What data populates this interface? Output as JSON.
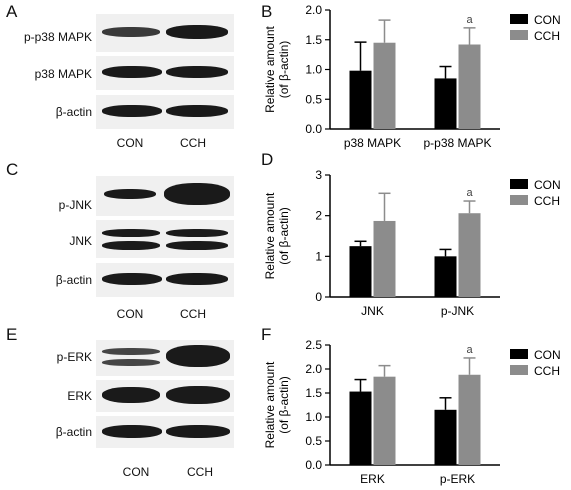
{
  "panels": {
    "A": {
      "letter": "A",
      "rows": [
        "p-p38 MAPK",
        "p38 MAPK",
        "β-actin"
      ],
      "lanes": [
        "CON",
        "CCH"
      ]
    },
    "B": {
      "letter": "B"
    },
    "C": {
      "letter": "C",
      "rows": [
        "p-JNK",
        "JNK",
        "β-actin"
      ],
      "lanes": [
        "CON",
        "CCH"
      ]
    },
    "D": {
      "letter": "D"
    },
    "E": {
      "letter": "E",
      "rows": [
        "p-ERK",
        "ERK",
        "β-actin"
      ],
      "lanes": [
        "CON",
        "CCH"
      ]
    },
    "F": {
      "letter": "F"
    }
  },
  "colors": {
    "CON": "#000000",
    "CCH": "#8c8c8c"
  },
  "chart_data": [
    {
      "panel": "B",
      "type": "bar",
      "categories": [
        "p38 MAPK",
        "p-p38 MAPK"
      ],
      "series": [
        {
          "name": "CON",
          "values": [
            0.98,
            0.85
          ],
          "errors": [
            0.48,
            0.2
          ]
        },
        {
          "name": "CCH",
          "values": [
            1.45,
            1.42
          ],
          "errors": [
            0.38,
            0.28
          ]
        }
      ],
      "ylabel": "Relative amount\n(of β-actin)",
      "ylim": [
        0,
        2.0
      ],
      "yticks": [
        "0.0",
        "0.5",
        "1.0",
        "1.5",
        "2.0"
      ],
      "annotations": [
        {
          "category": 1,
          "series": 1,
          "text": "a"
        }
      ],
      "legend": "top-right"
    },
    {
      "panel": "D",
      "type": "bar",
      "categories": [
        "JNK",
        "p-JNK"
      ],
      "series": [
        {
          "name": "CON",
          "values": [
            1.25,
            1.0
          ],
          "errors": [
            0.12,
            0.17
          ]
        },
        {
          "name": "CCH",
          "values": [
            1.87,
            2.06
          ],
          "errors": [
            0.68,
            0.3
          ]
        }
      ],
      "ylabel": "Relative amount\n(of β-actin)",
      "ylim": [
        0,
        3
      ],
      "yticks": [
        "0",
        "1",
        "2",
        "3"
      ],
      "annotations": [
        {
          "category": 1,
          "series": 1,
          "text": "a"
        }
      ],
      "legend": "top-right"
    },
    {
      "panel": "F",
      "type": "bar",
      "categories": [
        "ERK",
        "p-ERK"
      ],
      "series": [
        {
          "name": "CON",
          "values": [
            1.53,
            1.15
          ],
          "errors": [
            0.25,
            0.25
          ]
        },
        {
          "name": "CCH",
          "values": [
            1.84,
            1.88
          ],
          "errors": [
            0.23,
            0.35
          ]
        }
      ],
      "ylabel": "Relative amount\n(of β-actin)",
      "ylim": [
        0,
        2.5
      ],
      "yticks": [
        "0.0",
        "0.5",
        "1.0",
        "1.5",
        "2.0",
        "2.5"
      ],
      "annotations": [
        {
          "category": 1,
          "series": 1,
          "text": "a"
        }
      ],
      "legend": "top-right"
    }
  ]
}
